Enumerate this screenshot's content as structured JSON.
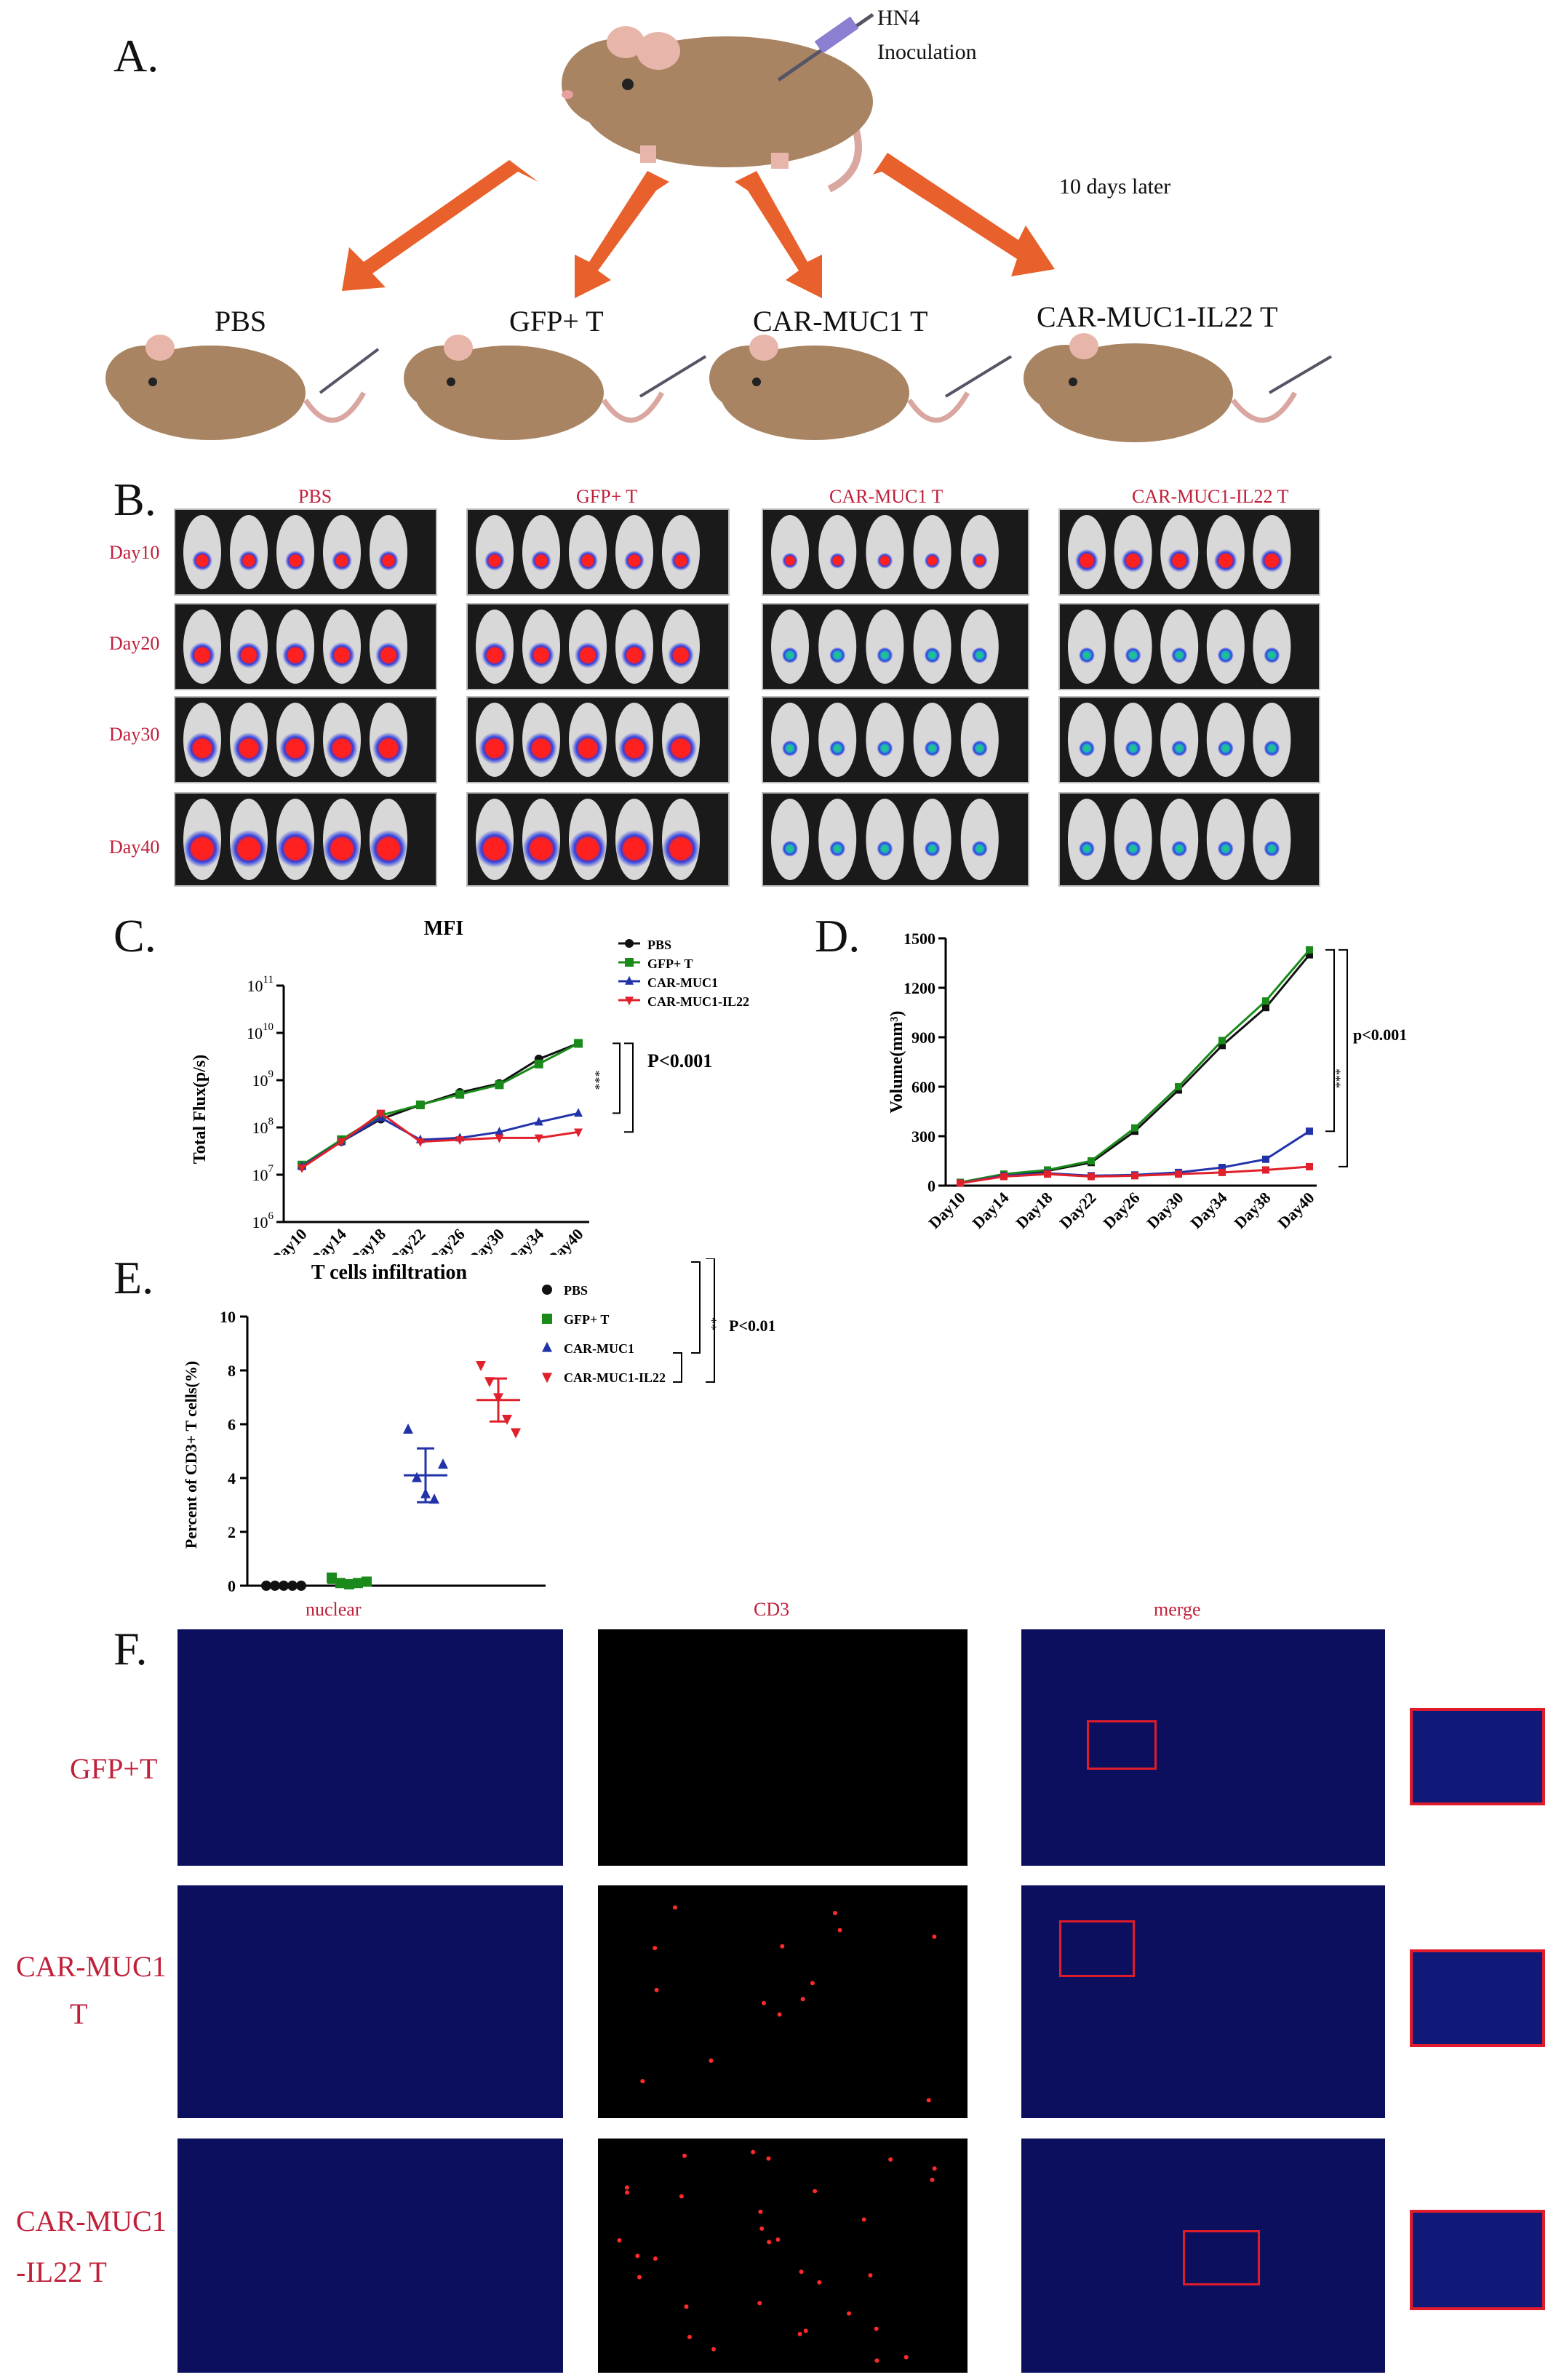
{
  "panelA": {
    "letter": "A.",
    "injection_label": "HN4",
    "injection_sub": "Inoculation",
    "delay_label": "10 days later",
    "groups": [
      "PBS",
      "GFP+ T",
      "CAR-MUC1 T",
      "CAR-MUC1-IL22 T"
    ]
  },
  "panelB": {
    "letter": "B.",
    "groups": [
      "PBS",
      "GFP+ T",
      "CAR-MUC1 T",
      "CAR-MUC1-IL22 T"
    ],
    "days": [
      "Day10",
      "Day20",
      "Day30",
      "Day40"
    ]
  },
  "panelC": {
    "letter": "C.",
    "pvalue": "P<0.001",
    "sig": "***"
  },
  "panelD": {
    "letter": "D.",
    "pvalue": "p<0.001",
    "sig": "***"
  },
  "panelE": {
    "letter": "E.",
    "pvalue": "P<0.01",
    "sig": "**"
  },
  "panelF": {
    "letter": "F.",
    "columns": [
      "nuclear",
      "CD3",
      "merge"
    ],
    "rows": [
      {
        "line1": "GFP+T",
        "line2": ""
      },
      {
        "line1": "CAR-MUC1",
        "line2": "T"
      },
      {
        "line1": "CAR-MUC1",
        "line2": "-IL22 T"
      }
    ]
  },
  "chart_data": [
    {
      "type": "line",
      "title": "MFI",
      "ylabel": "Total Flux(p/s)",
      "yscale": "log",
      "ylim": [
        1000000,
        100000000000
      ],
      "y_tick_labels": [
        "10^6",
        "10^7",
        "10^8",
        "10^9",
        "10^10",
        "10^11"
      ],
      "categories": [
        "Day10",
        "Day14",
        "Day18",
        "Day22",
        "Day26",
        "Day30",
        "Day34",
        "Day40"
      ],
      "series": [
        {
          "name": "PBS",
          "color": "#111111",
          "marker": "circle",
          "values": [
            15000000,
            50000000,
            150000000,
            300000000,
            550000000,
            850000000,
            2800000000,
            6000000000
          ]
        },
        {
          "name": "GFP+ T",
          "color": "#1a8a1a",
          "marker": "square",
          "values": [
            16000000,
            55000000,
            180000000,
            300000000,
            500000000,
            800000000,
            2200000000,
            6000000000
          ]
        },
        {
          "name": "CAR-MUC1",
          "color": "#2233aa",
          "marker": "triangle",
          "values": [
            15000000,
            50000000,
            160000000,
            55000000,
            60000000,
            80000000,
            130000000,
            200000000
          ]
        },
        {
          "name": "CAR-MUC1-IL22",
          "color": "#e0202a",
          "marker": "triangle-down",
          "values": [
            14000000,
            50000000,
            200000000,
            50000000,
            55000000,
            60000000,
            60000000,
            80000000
          ]
        }
      ]
    },
    {
      "type": "line",
      "title": "",
      "ylabel": "Volume(mm³)",
      "ylim": [
        0,
        1500
      ],
      "y_ticks": [
        0,
        300,
        600,
        900,
        1200,
        1500
      ],
      "categories": [
        "Day10",
        "Day14",
        "Day18",
        "Day22",
        "Day26",
        "Day30",
        "Day34",
        "Day38",
        "Day40"
      ],
      "series": [
        {
          "name": "PBS",
          "color": "#111111",
          "values": [
            20,
            65,
            90,
            140,
            330,
            580,
            850,
            1080,
            1400
          ]
        },
        {
          "name": "GFP+ T",
          "color": "#1a8a1a",
          "values": [
            20,
            70,
            95,
            150,
            350,
            600,
            880,
            1120,
            1430
          ]
        },
        {
          "name": "CAR-MUC1",
          "color": "#2233aa",
          "values": [
            15,
            60,
            75,
            60,
            65,
            80,
            110,
            160,
            330
          ]
        },
        {
          "name": "CAR-MUC1-IL22",
          "color": "#e0202a",
          "values": [
            15,
            55,
            70,
            55,
            60,
            70,
            80,
            95,
            115
          ]
        }
      ]
    },
    {
      "type": "scatter",
      "title": "T cells infiltration",
      "ylabel": "Percent of CD3+ T cells(%)",
      "ylim": [
        0,
        10
      ],
      "y_ticks": [
        0,
        2,
        4,
        6,
        8,
        10
      ],
      "series": [
        {
          "name": "PBS",
          "color": "#111111",
          "marker": "circle",
          "values": [
            0,
            0,
            0,
            0,
            0
          ],
          "mean": 0,
          "sd": 0
        },
        {
          "name": "GFP+ T",
          "color": "#1a8a1a",
          "marker": "square",
          "values": [
            0.3,
            0.1,
            0.05,
            0.1,
            0.15
          ],
          "mean": 0.1,
          "sd": 0.1
        },
        {
          "name": "CAR-MUC1",
          "color": "#2233aa",
          "marker": "triangle",
          "values": [
            5.8,
            4.0,
            3.4,
            3.2,
            4.5
          ],
          "mean": 4.1,
          "sd": 1.0
        },
        {
          "name": "CAR-MUC1-IL22",
          "color": "#e0202a",
          "marker": "triangle-down",
          "values": [
            8.2,
            7.6,
            7.0,
            6.2,
            5.7
          ],
          "mean": 6.9,
          "sd": 0.8
        }
      ]
    }
  ]
}
